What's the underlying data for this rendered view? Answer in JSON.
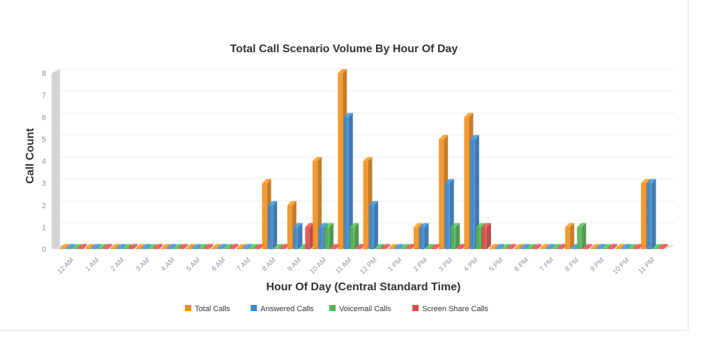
{
  "chart_data": {
    "type": "bar",
    "title": "Total Call Scenario Volume By Hour Of Day",
    "xlabel": "Hour Of Day (Central Standard Time)",
    "ylabel": "Call Count",
    "ylim": [
      0,
      8
    ],
    "yticks": [
      "0",
      "1",
      "2",
      "3",
      "4",
      "5",
      "6",
      "7",
      "8"
    ],
    "categories": [
      "12 AM",
      "1 AM",
      "2 AM",
      "3 AM",
      "4 AM",
      "5 AM",
      "6 AM",
      "7 AM",
      "8 AM",
      "9 AM",
      "10 AM",
      "11 AM",
      "12 PM",
      "1 PM",
      "2 PM",
      "3 PM",
      "4 PM",
      "5 PM",
      "6 PM",
      "7 PM",
      "8 PM",
      "9 PM",
      "10 PM",
      "11 PM"
    ],
    "series": [
      {
        "name": "Total Calls",
        "color": "#f28f1c",
        "values": [
          0,
          0,
          0,
          0,
          0,
          0,
          0,
          0,
          3,
          2,
          4,
          8,
          4,
          0,
          1,
          5,
          6,
          0,
          0,
          0,
          1,
          0,
          0,
          3
        ]
      },
      {
        "name": "Answered Calls",
        "color": "#3a8bd5",
        "values": [
          0,
          0,
          0,
          0,
          0,
          0,
          0,
          0,
          2,
          1,
          1,
          6,
          2,
          0,
          1,
          3,
          5,
          0,
          0,
          0,
          0,
          0,
          0,
          3
        ]
      },
      {
        "name": "Voicemail Calls",
        "color": "#52b452",
        "values": [
          0,
          0,
          0,
          0,
          0,
          0,
          0,
          0,
          0,
          0,
          1,
          1,
          0,
          0,
          0,
          1,
          1,
          0,
          0,
          0,
          1,
          0,
          0,
          0
        ]
      },
      {
        "name": "Screen Share Calls",
        "color": "#e04a4a",
        "values": [
          0,
          0,
          0,
          0,
          0,
          0,
          0,
          0,
          0,
          1,
          0,
          0,
          0,
          0,
          0,
          0,
          1,
          0,
          0,
          0,
          0,
          0,
          0,
          0
        ]
      }
    ],
    "grid": true,
    "legend_position": "bottom-center",
    "style": "3d-column"
  }
}
